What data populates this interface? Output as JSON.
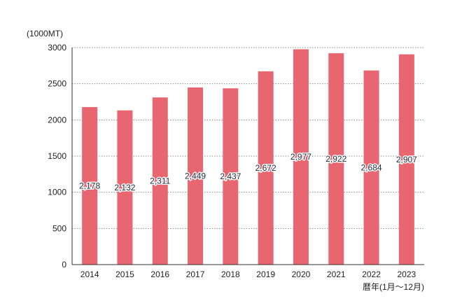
{
  "chart_data": {
    "type": "bar",
    "categories": [
      "2014",
      "2015",
      "2016",
      "2017",
      "2018",
      "2019",
      "2020",
      "2021",
      "2022",
      "2023"
    ],
    "values": [
      2178,
      2132,
      2311,
      2449,
      2437,
      2672,
      2977,
      2922,
      2684,
      2907
    ],
    "data_labels": [
      "2,178",
      "2,132",
      "2,311",
      "2,449",
      "2,437",
      "2,672",
      "2,977",
      "2,922",
      "2,684",
      "2,907"
    ],
    "y_ticks": [
      "0",
      "500",
      "1000",
      "1500",
      "2000",
      "2500",
      "3000"
    ],
    "y_tick_values": [
      0,
      500,
      1000,
      1500,
      2000,
      2500,
      3000
    ],
    "ylabel": "(1000MT)",
    "xlabel": "暦年(1月〜12月)",
    "ylim": [
      0,
      3000
    ],
    "grid": true,
    "legend": false,
    "colors": {
      "bar": "#e8666f",
      "grid": "#8a8a8a",
      "axis": "#333333"
    }
  }
}
